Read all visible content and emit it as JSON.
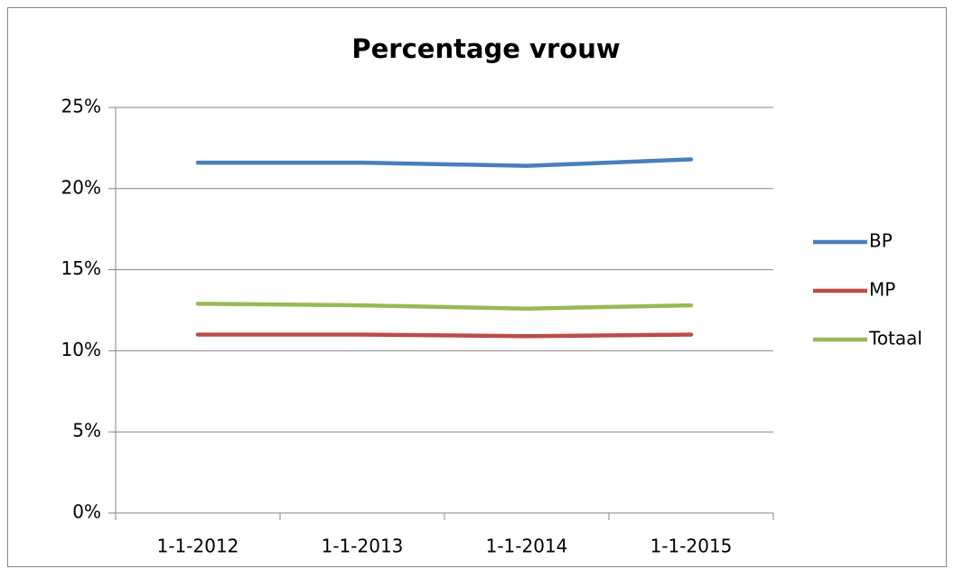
{
  "chart_data": {
    "type": "line",
    "title": "Percentage vrouw",
    "categories": [
      "1-1-2012",
      "1-1-2013",
      "1-1-2014",
      "1-1-2015"
    ],
    "series": [
      {
        "name": "BP",
        "color": "#4a7ebb",
        "values": [
          21.6,
          21.6,
          21.4,
          21.8
        ]
      },
      {
        "name": "MP",
        "color": "#be4b48",
        "values": [
          11.0,
          11.0,
          10.9,
          11.0
        ]
      },
      {
        "name": "Totaal",
        "color": "#98b954",
        "values": [
          12.9,
          12.8,
          12.6,
          12.8
        ]
      }
    ],
    "ylim": [
      0,
      25
    ],
    "yticks": [
      {
        "value": 0,
        "label": "0%"
      },
      {
        "value": 5,
        "label": "5%"
      },
      {
        "value": 10,
        "label": "10%"
      },
      {
        "value": 15,
        "label": "15%"
      },
      {
        "value": 20,
        "label": "20%"
      },
      {
        "value": 25,
        "label": "25%"
      }
    ],
    "grid": true,
    "legend": "right"
  }
}
